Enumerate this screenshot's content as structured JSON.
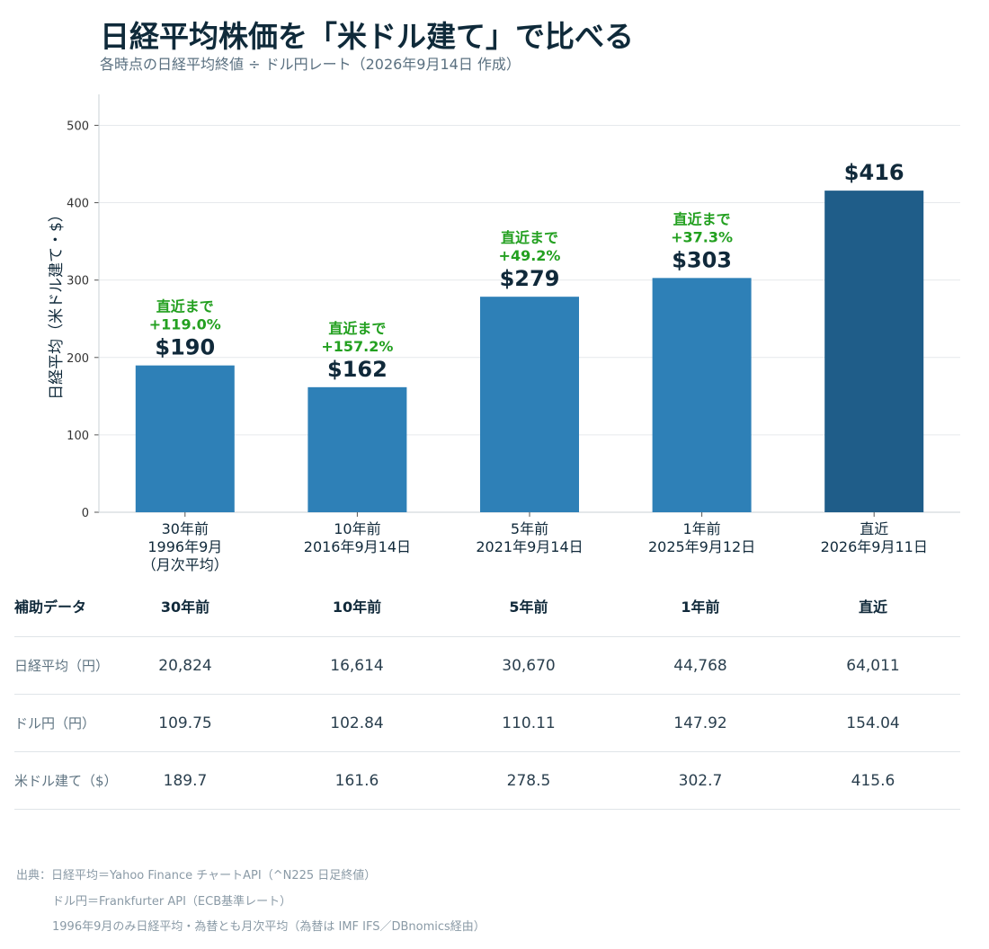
{
  "title": "日経平均株価を「米ドル建て」で比べる",
  "subtitle": "各時点の日経平均終値 ÷ ドル円レート（2026年9月14日 作成）",
  "colors": {
    "bar": "#2e80b7",
    "bar_latest": "#1f5d89",
    "annotation": "#23a020",
    "text": "#10293a"
  },
  "chart_data": {
    "type": "bar",
    "ylabel": "日経平均（米ドル建て・$）",
    "ylim": [
      0,
      540
    ],
    "yticks": [
      0,
      100,
      200,
      300,
      400,
      500
    ],
    "grid": true,
    "categories": [
      [
        "30年前",
        "1996年9月",
        "（月次平均）"
      ],
      [
        "10年前",
        "2016年9月14日"
      ],
      [
        "5年前",
        "2021年9月14日"
      ],
      [
        "1年前",
        "2025年9月12日"
      ],
      [
        "直近",
        "2026年9月11日"
      ]
    ],
    "values": [
      189.7,
      161.6,
      278.5,
      302.7,
      415.6
    ],
    "value_labels": [
      "$190",
      "$162",
      "$279",
      "$303",
      "$416"
    ],
    "annotations": [
      [
        "直近まで",
        "+119.0%"
      ],
      [
        "直近まで",
        "+157.2%"
      ],
      [
        "直近まで",
        "+49.2%"
      ],
      [
        "直近まで",
        "+37.3%"
      ],
      null
    ]
  },
  "table": {
    "header": [
      "補助データ",
      "30年前",
      "10年前",
      "5年前",
      "1年前",
      "直近"
    ],
    "rows": [
      {
        "label": "日経平均（円）",
        "values": [
          "20,824",
          "16,614",
          "30,670",
          "44,768",
          "64,011"
        ]
      },
      {
        "label": "ドル円（円）",
        "values": [
          "109.75",
          "102.84",
          "110.11",
          "147.92",
          "154.04"
        ]
      },
      {
        "label": "米ドル建て（$）",
        "values": [
          "189.7",
          "161.6",
          "278.5",
          "302.7",
          "415.6"
        ]
      }
    ]
  },
  "source": {
    "line1": "出典：日経平均＝Yahoo Finance チャートAPI（^N225 日足終値）",
    "line2": "ドル円＝Frankfurter API（ECB基準レート）",
    "line3": "1996年9月のみ日経平均・為替とも月次平均（為替は IMF IFS／DBnomics経由）"
  }
}
